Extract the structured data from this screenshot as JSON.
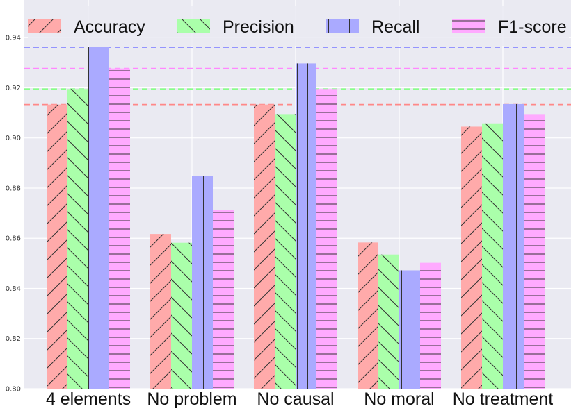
{
  "chart_data": {
    "type": "bar",
    "title": "",
    "xlabel": "",
    "ylabel": "",
    "ylim": [
      0.8,
      0.955
    ],
    "yticks": [
      "0.80",
      "0.82",
      "0.84",
      "0.86",
      "0.88",
      "0.90",
      "0.92",
      "0.94"
    ],
    "categories": [
      "4 elements",
      "No problem",
      "No causal",
      "No moral",
      "No treatment"
    ],
    "series": [
      {
        "name": "Accuracy",
        "color": "#ffaaaa",
        "hatch": "forward",
        "values": [
          0.9133,
          0.8617,
          0.9133,
          0.8583,
          0.9045
        ]
      },
      {
        "name": "Precision",
        "color": "#aaffaa",
        "hatch": "backward",
        "values": [
          0.9195,
          0.8582,
          0.9095,
          0.8535,
          0.9058
        ]
      },
      {
        "name": "Recall",
        "color": "#aaaaff",
        "hatch": "vertical",
        "values": [
          0.9362,
          0.8848,
          0.9297,
          0.8472,
          0.9135
        ]
      },
      {
        "name": "F1-score",
        "color": "#ffaaff",
        "hatch": "horizontal",
        "values": [
          0.9277,
          0.8712,
          0.9195,
          0.8502,
          0.9095
        ]
      }
    ],
    "reference_lines": [
      {
        "series": "Accuracy",
        "value": 0.9133,
        "color": "#ff8888"
      },
      {
        "series": "Precision",
        "value": 0.9195,
        "color": "#88ff88"
      },
      {
        "series": "Recall",
        "value": 0.9362,
        "color": "#8888ff"
      },
      {
        "series": "F1-score",
        "value": 0.9277,
        "color": "#ff88ff"
      }
    ],
    "legend_position": "top",
    "grid": true
  }
}
